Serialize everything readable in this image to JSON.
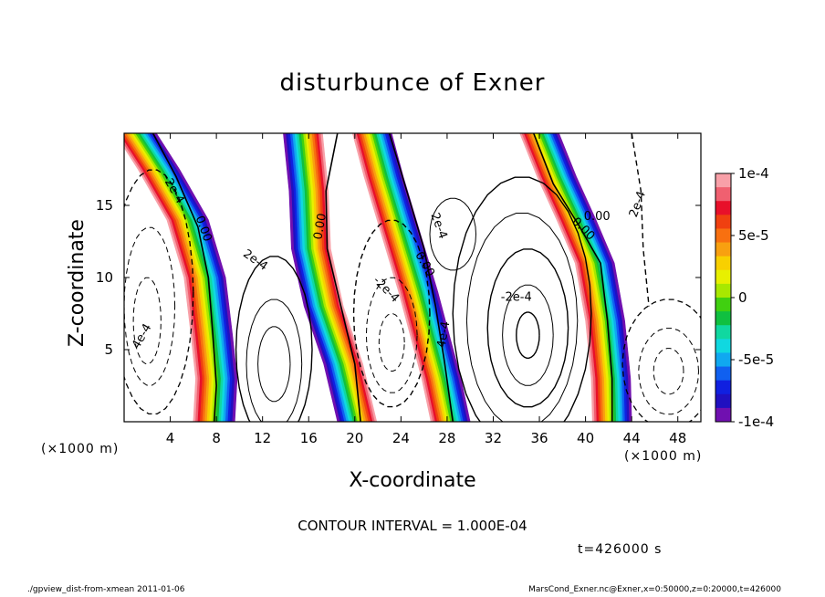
{
  "chart_data": {
    "type": "heatmap",
    "title": "disturbunce of Exner",
    "xlabel": "X-coordinate",
    "ylabel": "Z-coordinate",
    "x_unit": "(×1000 m)",
    "y_unit": "(×1000 m)",
    "xlim": [
      0,
      50
    ],
    "ylim": [
      0,
      20
    ],
    "x_ticks": [
      4,
      8,
      12,
      16,
      20,
      24,
      28,
      32,
      36,
      40,
      44,
      48
    ],
    "y_ticks": [
      5,
      10,
      15
    ],
    "colorbar": {
      "range": [
        -0.0001,
        0.0001
      ],
      "tick_labels": [
        "1e-4",
        "5e-5",
        "0",
        "-5e-5",
        "-1e-4"
      ],
      "tick_values": [
        0.0001,
        5e-05,
        0,
        -5e-05,
        -0.0001
      ],
      "colors": [
        "#f8a0a8",
        "#f06070",
        "#e8102a",
        "#f04010",
        "#f87010",
        "#f8a010",
        "#f8d000",
        "#e8f000",
        "#a8e800",
        "#40d010",
        "#10c040",
        "#10d8a0",
        "#10d8e0",
        "#10a8f0",
        "#1060f0",
        "#1020e0",
        "#2010c0",
        "#7010b0"
      ]
    },
    "contour_labels": [
      "0.00",
      "0.00",
      "0.00",
      "0.00",
      "0.00",
      "2e-4",
      "2e-4",
      "-2e-4",
      "2e-4",
      "4e-4",
      "-2e-4",
      "4e-4",
      "-2e-4"
    ],
    "contour_interval": "CONTOUR INTERVAL = 1.000E-04",
    "time": "t=426000 s"
  },
  "footer": {
    "left": "./gpview_dist-from-xmean   2011-01-06",
    "right": "MarsCond_Exner.nc@Exner,x=0:50000,z=0:20000,t=426000"
  }
}
